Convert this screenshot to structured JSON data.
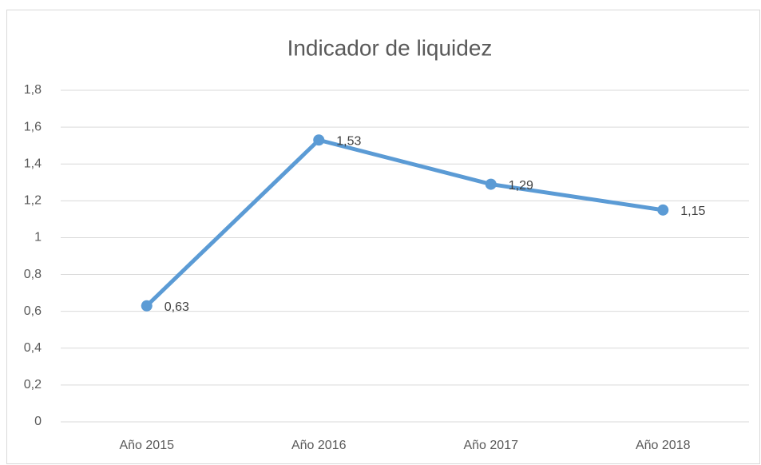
{
  "chart_data": {
    "type": "line",
    "title": "Indicador de liquidez",
    "categories": [
      "Año 2015",
      "Año 2016",
      "Año 2017",
      "Año 2018"
    ],
    "values": [
      0.63,
      1.53,
      1.29,
      1.15
    ],
    "value_labels": [
      "0,63",
      "1,53",
      "1,29",
      "1,15"
    ],
    "color": "#5b9bd5",
    "ylim": [
      0,
      1.8
    ],
    "yticks": [
      0,
      {
        "value": 0.2,
        "label": "0,2"
      },
      {
        "value": 0.4,
        "label": "0,4"
      },
      {
        "value": 0.6,
        "label": "0,6"
      },
      {
        "value": 0.8,
        "label": "0,8"
      },
      1,
      {
        "value": 1.2,
        "label": "1,2"
      },
      {
        "value": 1.4,
        "label": "1,4"
      },
      {
        "value": 1.6,
        "label": "1,6"
      },
      {
        "value": 1.8,
        "label": "1,8"
      }
    ],
    "grid": true
  }
}
